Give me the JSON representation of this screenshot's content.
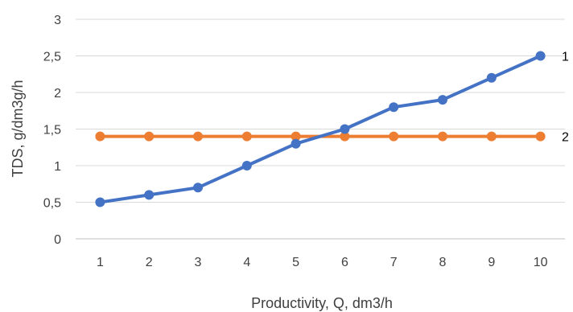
{
  "chart_data": {
    "type": "line",
    "title": "",
    "xlabel": "Productivity, Q, dm3/h",
    "ylabel": "TDS, g/dm3g/h",
    "x": [
      1,
      2,
      3,
      4,
      5,
      6,
      7,
      8,
      9,
      10
    ],
    "x_tick_labels": [
      "1",
      "2",
      "3",
      "4",
      "5",
      "6",
      "7",
      "8",
      "9",
      "10"
    ],
    "ylim": [
      0,
      3
    ],
    "y_tick_labels": [
      "0",
      "0,5",
      "1",
      "1,5",
      "2",
      "2,5",
      "3"
    ],
    "grid": "horizontal",
    "series": [
      {
        "name": "1",
        "color": "#4472C4",
        "values": [
          0.5,
          0.6,
          0.7,
          1.0,
          1.3,
          1.5,
          1.8,
          1.9,
          2.2,
          2.5
        ]
      },
      {
        "name": "2",
        "color": "#ED7D31",
        "values": [
          1.4,
          1.4,
          1.4,
          1.4,
          1.4,
          1.4,
          1.4,
          1.4,
          1.4,
          1.4
        ]
      }
    ]
  }
}
